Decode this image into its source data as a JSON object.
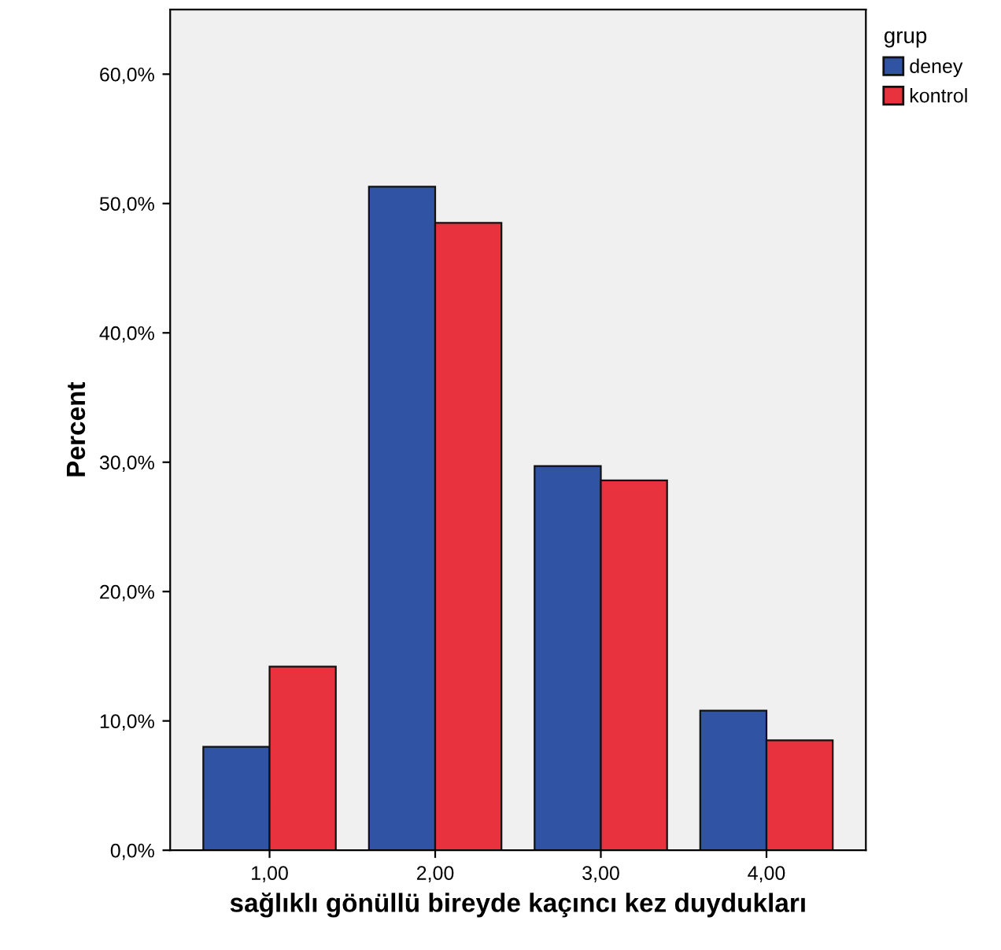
{
  "chart_data": {
    "type": "bar",
    "xlabel": "sağlıklı gönüllü bireyde kaçıncı kez duydukları",
    "ylabel": "Percent",
    "legend_title": "grup",
    "categories": [
      "1,00",
      "2,00",
      "3,00",
      "4,00"
    ],
    "series": [
      {
        "name": "deney",
        "color": "#3053a4",
        "values": [
          8.0,
          51.3,
          29.7,
          10.8
        ]
      },
      {
        "name": "kontrol",
        "color": "#e8333f",
        "values": [
          14.2,
          48.5,
          28.6,
          8.5
        ]
      }
    ],
    "ylim": [
      0,
      65
    ],
    "yticks": [
      {
        "value": 0,
        "label": "0,0%"
      },
      {
        "value": 10,
        "label": "10,0%"
      },
      {
        "value": 20,
        "label": "20,0%"
      },
      {
        "value": 30,
        "label": "30,0%"
      },
      {
        "value": 40,
        "label": "40,0%"
      },
      {
        "value": 50,
        "label": "50,0%"
      },
      {
        "value": 60,
        "label": "60,0%"
      }
    ],
    "grid": false,
    "legend": "top right"
  }
}
